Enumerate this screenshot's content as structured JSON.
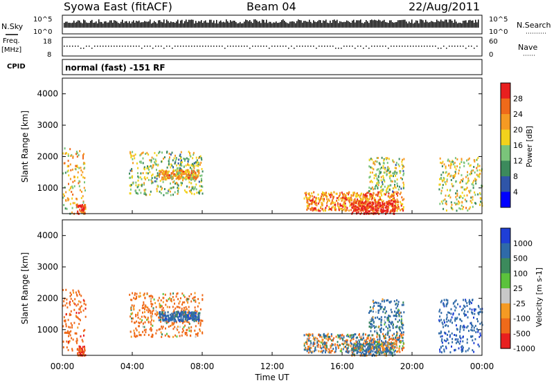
{
  "header": {
    "station": "Syowa East (fitACF)",
    "beam": "Beam 04",
    "date": "22/Aug/2011"
  },
  "noise_panel": {
    "left_label": "N.Sky",
    "right_label": "N.Search",
    "left_ticks": [
      "10^5",
      "10^0"
    ],
    "right_ticks": [
      "10^5",
      "10^0"
    ]
  },
  "freq_panel": {
    "left_label_1": "Freq.",
    "left_label_2": "[MHz]",
    "left_ticks": [
      "18",
      "8"
    ],
    "right_label": "Nave",
    "right_ticks": [
      "60",
      "0"
    ]
  },
  "cpid": {
    "label": "CPID",
    "value": "normal (fast) -151 RF"
  },
  "power_panel": {
    "ylabel": "Slant Range [km]",
    "yticks": [
      "1000",
      "2000",
      "3000",
      "4000"
    ],
    "colorbar_label": "Power [dB]",
    "colorbar_ticks": [
      "4",
      "8",
      "12",
      "16",
      "20",
      "24",
      "28"
    ],
    "colors": [
      "#0000ff",
      "#2f55a8",
      "#3c8a5c",
      "#7ac47a",
      "#f2d21c",
      "#f59a23",
      "#ef6a1a",
      "#e81f1f"
    ]
  },
  "velocity_panel": {
    "ylabel": "Slant Range [km]",
    "yticks": [
      "1000",
      "2000",
      "3000",
      "4000"
    ],
    "colorbar_label": "Velocity [m s-1]",
    "colorbar_ticks": [
      "1000",
      "500",
      "100",
      "25",
      "-25",
      "-100",
      "-500",
      "-1000"
    ],
    "colors": [
      "#1f3fd6",
      "#2f6aa8",
      "#3c8a5c",
      "#5bc23c",
      "#c8c8c8",
      "#f59a23",
      "#ef6a1a",
      "#e81f1f"
    ]
  },
  "xaxis": {
    "label": "Time UT",
    "ticks": [
      "00:00",
      "04:00",
      "08:00",
      "12:00",
      "16:00",
      "20:00",
      "00:00"
    ]
  },
  "chart_data": {
    "type": "heatmap",
    "title": "Syowa East (fitACF)",
    "x_range_hours": [
      0,
      24
    ],
    "y_range_km": [
      180,
      4500
    ],
    "power_scale_db": [
      0,
      30
    ],
    "velocity_scale_ms": [
      -1000,
      1000
    ],
    "echo_regions": [
      {
        "t_start": 0.0,
        "t_end": 1.3,
        "r_start": 200,
        "r_end": 2300,
        "power_db": 18,
        "velocity_ms": -300
      },
      {
        "t_start": 0.8,
        "t_end": 1.3,
        "r_start": 200,
        "r_end": 500,
        "power_db": 28,
        "velocity_ms": -500
      },
      {
        "t_start": 3.8,
        "t_end": 8.0,
        "r_start": 800,
        "r_end": 2200,
        "power_db": 14,
        "velocity_ms": -200
      },
      {
        "t_start": 5.5,
        "t_end": 7.8,
        "r_start": 1300,
        "r_end": 1600,
        "power_db": 20,
        "velocity_ms": 300
      },
      {
        "t_start": 13.8,
        "t_end": 19.5,
        "r_start": 300,
        "r_end": 900,
        "power_db": 22,
        "velocity_ms": 0
      },
      {
        "t_start": 16.5,
        "t_end": 19.0,
        "r_start": 200,
        "r_end": 600,
        "power_db": 28,
        "velocity_ms": 100
      },
      {
        "t_start": 17.5,
        "t_end": 19.5,
        "r_start": 900,
        "r_end": 2000,
        "power_db": 14,
        "velocity_ms": 200
      },
      {
        "t_start": 21.5,
        "t_end": 24.0,
        "r_start": 300,
        "r_end": 2000,
        "power_db": 16,
        "velocity_ms": 400
      }
    ]
  }
}
